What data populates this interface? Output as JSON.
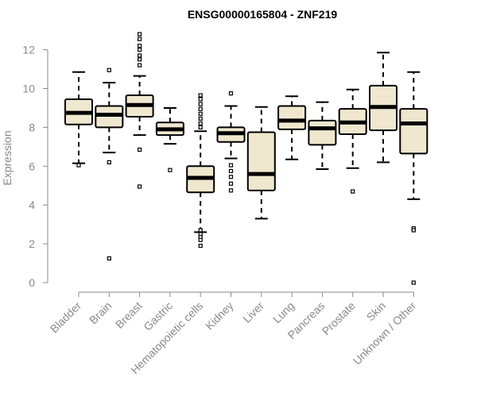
{
  "chart_data": {
    "type": "boxplot",
    "title": "ENSG00000165804 - ZNF219",
    "ylabel": "Expression",
    "xlabel": "",
    "ylim": [
      0,
      13
    ],
    "yticks": [
      "0",
      "2",
      "4",
      "6",
      "8",
      "10",
      "12"
    ],
    "grid": false,
    "box_fill": "#efe8cf",
    "categories": [
      "Bladder",
      "Brain",
      "Breast",
      "Gastric",
      "Hematopoietic cells",
      "Kidney",
      "Liver",
      "Lung",
      "Pancreas",
      "Prostate",
      "Skin",
      "Unknown / Other"
    ],
    "boxes": [
      {
        "whisker_low": 6.15,
        "q1": 8.15,
        "median": 8.75,
        "q3": 9.45,
        "whisker_high": 10.85,
        "outliers": [
          6.05
        ]
      },
      {
        "whisker_low": 6.7,
        "q1": 8.0,
        "median": 8.65,
        "q3": 9.1,
        "whisker_high": 10.3,
        "outliers": [
          10.95,
          6.2,
          1.25
        ]
      },
      {
        "whisker_low": 7.6,
        "q1": 8.55,
        "median": 9.15,
        "q3": 9.65,
        "whisker_high": 10.65,
        "outliers": [
          12.8,
          12.55,
          12.2,
          12.0,
          11.7,
          11.5,
          11.2,
          6.85,
          4.95
        ]
      },
      {
        "whisker_low": 7.15,
        "q1": 7.6,
        "median": 7.9,
        "q3": 8.25,
        "whisker_high": 9.0,
        "outliers": [
          5.8
        ]
      },
      {
        "whisker_low": 2.6,
        "q1": 4.65,
        "median": 5.4,
        "q3": 6.0,
        "whisker_high": 7.8,
        "outliers": [
          9.65,
          9.45,
          9.2,
          8.95,
          8.7,
          8.45,
          8.2,
          8.0,
          2.7,
          2.5,
          2.35,
          2.2,
          1.9
        ]
      },
      {
        "whisker_low": 6.4,
        "q1": 7.25,
        "median": 7.7,
        "q3": 8.0,
        "whisker_high": 9.1,
        "outliers": [
          9.75,
          6.05,
          5.75,
          5.45,
          5.1,
          4.75
        ]
      },
      {
        "whisker_low": 3.3,
        "q1": 4.75,
        "median": 5.6,
        "q3": 7.75,
        "whisker_high": 9.05,
        "outliers": []
      },
      {
        "whisker_low": 6.35,
        "q1": 7.9,
        "median": 8.35,
        "q3": 9.1,
        "whisker_high": 9.6,
        "outliers": []
      },
      {
        "whisker_low": 5.85,
        "q1": 7.1,
        "median": 7.95,
        "q3": 8.35,
        "whisker_high": 9.3,
        "outliers": []
      },
      {
        "whisker_low": 5.9,
        "q1": 7.65,
        "median": 8.25,
        "q3": 8.95,
        "whisker_high": 9.95,
        "outliers": [
          4.7
        ]
      },
      {
        "whisker_low": 6.2,
        "q1": 7.85,
        "median": 9.05,
        "q3": 10.15,
        "whisker_high": 11.85,
        "outliers": []
      },
      {
        "whisker_low": 4.3,
        "q1": 6.65,
        "median": 8.2,
        "q3": 8.95,
        "whisker_high": 10.85,
        "outliers": [
          2.8,
          2.7,
          0.0
        ]
      }
    ]
  }
}
